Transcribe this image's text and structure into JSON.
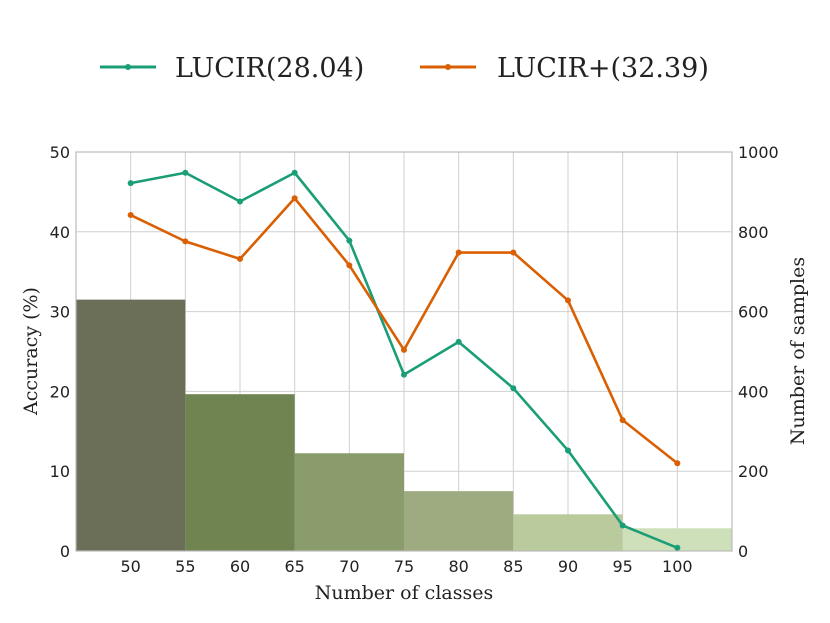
{
  "chart_data": {
    "type": "line",
    "xlabel": "Number of classes",
    "ylabel_left": "Accuracy (%)",
    "ylabel_right": "Number of samples",
    "x_ticks": [
      "50",
      "55",
      "60",
      "65",
      "70",
      "75",
      "80",
      "85",
      "90",
      "95",
      "100"
    ],
    "ylim_left": [
      0,
      50
    ],
    "y_ticks_left": [
      "0",
      "10",
      "20",
      "30",
      "40",
      "50"
    ],
    "ylim_right": [
      0,
      1000
    ],
    "y_ticks_right": [
      "0",
      "200",
      "400",
      "600",
      "800",
      "1000"
    ],
    "grid": true,
    "legend_position": "top",
    "series": [
      {
        "name": "LUCIR(28.04)",
        "color": "#1b9e77",
        "x": [
          50,
          55,
          60,
          65,
          70,
          75,
          80,
          85,
          90,
          95,
          100
        ],
        "values": [
          46.1,
          47.4,
          43.8,
          47.4,
          38.9,
          22.1,
          26.2,
          20.4,
          12.6,
          3.2,
          0.4
        ]
      },
      {
        "name": "LUCIR+(32.39)",
        "color": "#d95f02",
        "x": [
          50,
          55,
          60,
          65,
          70,
          75,
          80,
          85,
          90,
          95,
          100
        ],
        "values": [
          42.1,
          38.8,
          36.6,
          44.2,
          35.8,
          25.2,
          37.4,
          37.4,
          31.4,
          16.4,
          11.0
        ]
      }
    ],
    "bars": {
      "axis": "right",
      "bins": [
        {
          "from": 45,
          "to": 55,
          "value": 630,
          "color": "#6b6f58"
        },
        {
          "from": 55,
          "to": 65,
          "value": 393,
          "color": "#6f8450"
        },
        {
          "from": 65,
          "to": 75,
          "value": 245,
          "color": "#8a9c6b"
        },
        {
          "from": 75,
          "to": 85,
          "value": 150,
          "color": "#9eab80"
        },
        {
          "from": 85,
          "to": 95,
          "value": 92,
          "color": "#b9cb9c"
        },
        {
          "from": 95,
          "to": 105,
          "value": 57,
          "color": "#cee0b9"
        }
      ]
    }
  }
}
